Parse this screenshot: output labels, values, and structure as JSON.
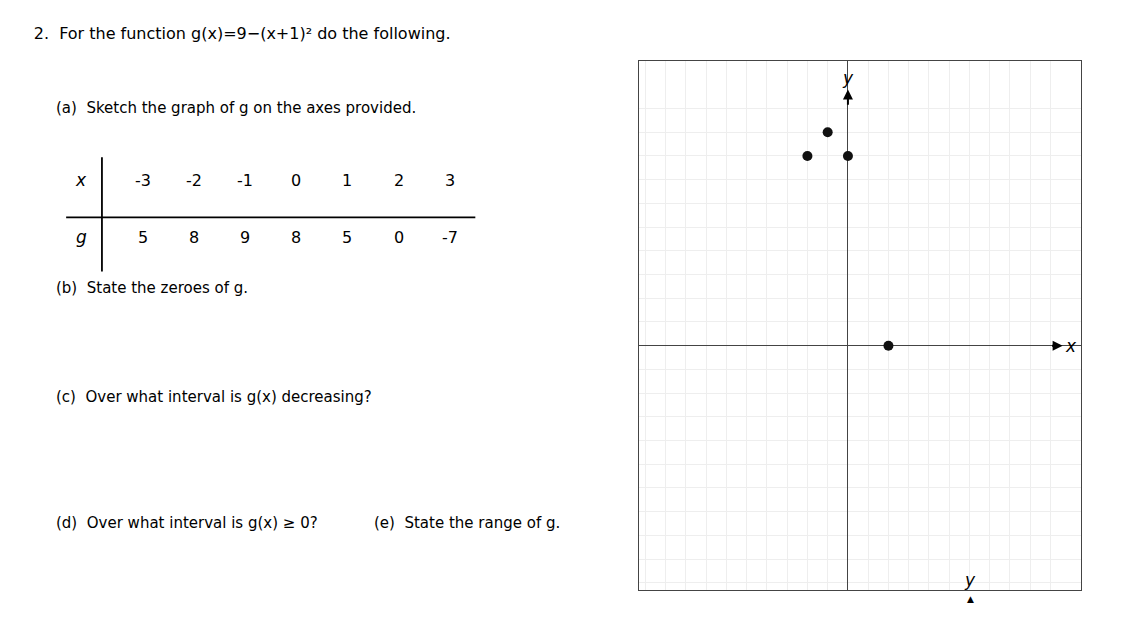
{
  "chart_data": {
    "type": "scatter",
    "title": "2.  For the function g(x)=9−(x+1)² do the following.",
    "parts": [
      "(a)  Sketch the graph of g on the axes provided.",
      "(b)  State the zeroes of g.",
      "(c)  Over what interval is g(x) decreasing?",
      "(d)  Over what interval is g(x) ≥ 0?",
      "(e)  State the range of g."
    ],
    "table": {
      "row_labels": [
        "x",
        "g"
      ],
      "x": [
        -3,
        -2,
        -1,
        0,
        1,
        2,
        3
      ],
      "g": [
        5,
        8,
        9,
        8,
        5,
        0,
        -7
      ]
    },
    "xlabel": "x",
    "ylabel": "y",
    "corner_marks": [
      "y",
      "▲"
    ],
    "x": [
      -1,
      -2,
      0,
      2
    ],
    "values": [
      9,
      8,
      8,
      0
    ],
    "color": "#111111",
    "marker": "circle",
    "xlim": [
      -10.3,
      11.5
    ],
    "ylim": [
      -10.3,
      12
    ],
    "xticks": [
      -10,
      -9,
      -8,
      -7,
      -6,
      -5,
      -4,
      -3,
      -2,
      -1,
      0,
      1,
      2,
      3,
      4,
      5,
      6,
      7,
      8,
      9,
      10
    ],
    "yticks": [
      -10,
      -9,
      -8,
      -7,
      -6,
      -5,
      -4,
      -3,
      -2,
      -1,
      0,
      1,
      2,
      3,
      4,
      5,
      6,
      7,
      8,
      9,
      10
    ],
    "grid": true,
    "tick_labels": false
  }
}
